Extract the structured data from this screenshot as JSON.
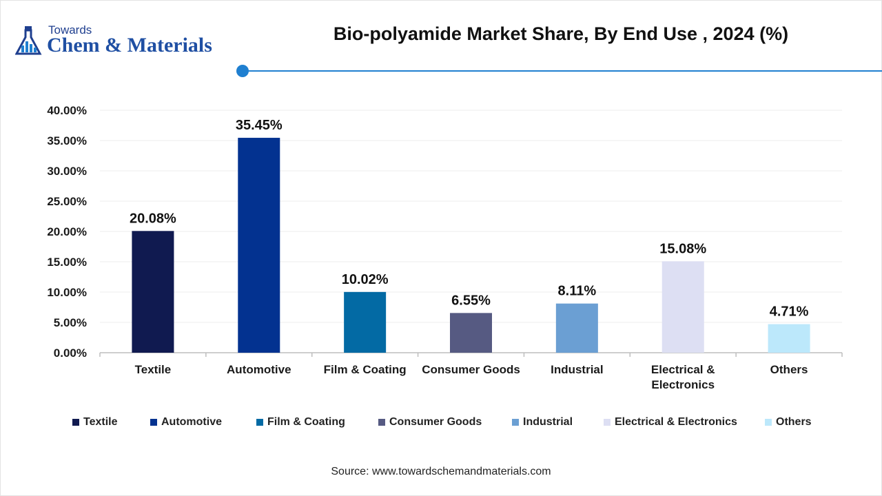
{
  "brand": {
    "top": "Towards",
    "main": "Chem & Materials",
    "icon": "flask-chart-icon"
  },
  "title": "Bio-polyamide Market Share, By End Use , 2024 (%)",
  "source": "Source: www.towardschemandmaterials.com",
  "accent_color": "#1f7fd0",
  "chart_data": {
    "type": "bar",
    "title": "Bio-polyamide Market Share, By End Use , 2024 (%)",
    "xlabel": "",
    "ylabel": "",
    "ylim": [
      0,
      40
    ],
    "yticks": [
      "0.00%",
      "5.00%",
      "10.00%",
      "15.00%",
      "20.00%",
      "25.00%",
      "30.00%",
      "35.00%",
      "40.00%"
    ],
    "grid": true,
    "legend_position": "bottom",
    "categories": [
      "Textile",
      "Automotive",
      "Film & Coating",
      "Consumer Goods",
      "Industrial",
      "Electrical & Electronics",
      "Others"
    ],
    "category_tick_labels": [
      [
        "Textile"
      ],
      [
        "Automotive"
      ],
      [
        "Film & Coating"
      ],
      [
        "Consumer Goods"
      ],
      [
        "Industrial"
      ],
      [
        "Electrical &",
        "Electronics"
      ],
      [
        "Others"
      ]
    ],
    "values": [
      20.08,
      35.45,
      10.02,
      6.55,
      8.11,
      15.08,
      4.71
    ],
    "data_labels": [
      "20.08%",
      "35.45%",
      "10.02%",
      "6.55%",
      "8.11%",
      "15.08%",
      "4.71%"
    ],
    "colors": [
      "#101a50",
      "#033290",
      "#036aa4",
      "#565a82",
      "#6b9fd3",
      "#dddff3",
      "#bce8fb"
    ]
  }
}
